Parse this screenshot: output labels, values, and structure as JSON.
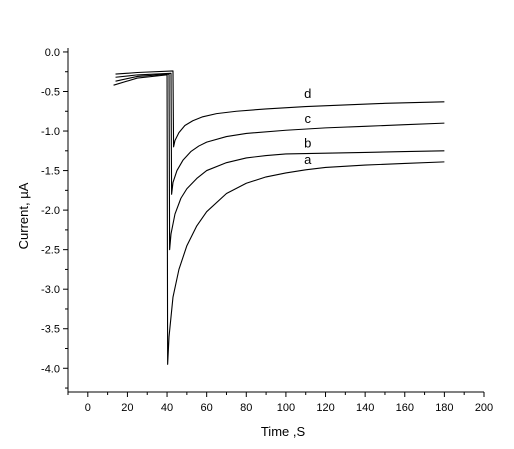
{
  "chart_data": {
    "type": "line",
    "title": "",
    "xlabel": "Time ,S",
    "ylabel": "Current, µA",
    "xlim": [
      -10,
      200
    ],
    "ylim": [
      -4.3,
      0.05
    ],
    "x_ticks": [
      0,
      20,
      40,
      60,
      80,
      100,
      120,
      140,
      160,
      180,
      200
    ],
    "x_tick_labels": [
      "0",
      "20",
      "40",
      "60",
      "80",
      "100",
      "120",
      "140",
      "160",
      "180",
      "200"
    ],
    "y_ticks": [
      0.0,
      -0.5,
      -1.0,
      -1.5,
      -2.0,
      -2.5,
      -3.0,
      -3.5,
      -4.0
    ],
    "y_tick_labels": [
      "0.0",
      "-0.5",
      "-1.0",
      "-1.5",
      "-2.0",
      "-2.5",
      "-3.0",
      "-3.5",
      "-4.0"
    ],
    "grid": false,
    "legend": "none",
    "series": [
      {
        "name": "a",
        "points": [
          [
            13,
            -0.42
          ],
          [
            25,
            -0.33
          ],
          [
            40,
            -0.29
          ],
          [
            40.3,
            -3.95
          ],
          [
            41,
            -3.6
          ],
          [
            43,
            -3.1
          ],
          [
            46,
            -2.75
          ],
          [
            50,
            -2.45
          ],
          [
            55,
            -2.2
          ],
          [
            60,
            -2.02
          ],
          [
            70,
            -1.79
          ],
          [
            80,
            -1.66
          ],
          [
            90,
            -1.58
          ],
          [
            100,
            -1.53
          ],
          [
            110,
            -1.49
          ],
          [
            120,
            -1.46
          ],
          [
            140,
            -1.43
          ],
          [
            160,
            -1.41
          ],
          [
            180,
            -1.39
          ]
        ]
      },
      {
        "name": "b",
        "points": [
          [
            14,
            -0.37
          ],
          [
            25,
            -0.31
          ],
          [
            41,
            -0.28
          ],
          [
            41.3,
            -2.5
          ],
          [
            42,
            -2.3
          ],
          [
            44,
            -2.05
          ],
          [
            47,
            -1.85
          ],
          [
            50,
            -1.73
          ],
          [
            55,
            -1.6
          ],
          [
            60,
            -1.5
          ],
          [
            70,
            -1.4
          ],
          [
            80,
            -1.34
          ],
          [
            90,
            -1.31
          ],
          [
            100,
            -1.29
          ],
          [
            120,
            -1.28
          ],
          [
            140,
            -1.27
          ],
          [
            160,
            -1.26
          ],
          [
            180,
            -1.25
          ]
        ]
      },
      {
        "name": "c",
        "points": [
          [
            14,
            -0.32
          ],
          [
            25,
            -0.29
          ],
          [
            42,
            -0.27
          ],
          [
            42.3,
            -1.8
          ],
          [
            43,
            -1.65
          ],
          [
            45,
            -1.5
          ],
          [
            48,
            -1.37
          ],
          [
            52,
            -1.26
          ],
          [
            56,
            -1.19
          ],
          [
            60,
            -1.14
          ],
          [
            70,
            -1.07
          ],
          [
            80,
            -1.03
          ],
          [
            100,
            -0.99
          ],
          [
            120,
            -0.96
          ],
          [
            140,
            -0.94
          ],
          [
            160,
            -0.92
          ],
          [
            180,
            -0.9
          ]
        ]
      },
      {
        "name": "d",
        "points": [
          [
            14,
            -0.28
          ],
          [
            25,
            -0.26
          ],
          [
            43,
            -0.24
          ],
          [
            43.3,
            -1.2
          ],
          [
            44,
            -1.12
          ],
          [
            46,
            -1.02
          ],
          [
            49,
            -0.93
          ],
          [
            53,
            -0.87
          ],
          [
            58,
            -0.82
          ],
          [
            65,
            -0.78
          ],
          [
            75,
            -0.75
          ],
          [
            90,
            -0.72
          ],
          [
            110,
            -0.69
          ],
          [
            130,
            -0.67
          ],
          [
            150,
            -0.65
          ],
          [
            165,
            -0.64
          ],
          [
            180,
            -0.63
          ]
        ]
      }
    ],
    "curve_labels": [
      {
        "text": "d",
        "x": 111,
        "y": -0.58
      },
      {
        "text": "c",
        "x": 111,
        "y": -0.9
      },
      {
        "text": "b",
        "x": 111,
        "y": -1.21
      },
      {
        "text": "a",
        "x": 111,
        "y": -1.42
      }
    ]
  }
}
